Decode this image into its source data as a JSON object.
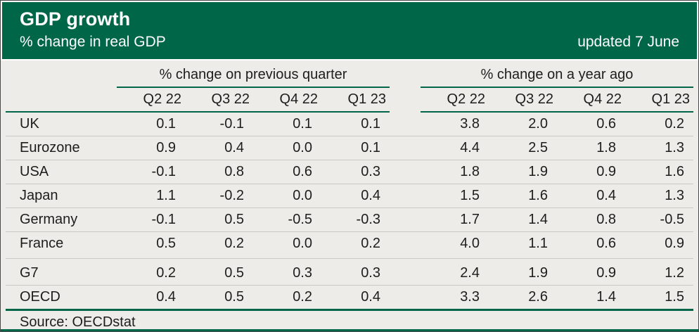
{
  "colors": {
    "brand_green": "#006648",
    "background": "#eeece9",
    "divider": "#c9c9c6",
    "text": "#1d1d1b",
    "header_text": "#ffffff"
  },
  "chart_data": {
    "type": "table",
    "title": "GDP growth",
    "subtitle": "% change in real GDP",
    "updated": "updated 7 June",
    "column_groups": [
      "% change on previous quarter",
      "% change on a year ago"
    ],
    "columns": [
      "Q2 22",
      "Q3 22",
      "Q4 22",
      "Q1 23"
    ],
    "rows": [
      {
        "name": "UK",
        "qoq": [
          "0.1",
          "-0.1",
          "0.1",
          "0.1"
        ],
        "yoy": [
          "3.8",
          "2.0",
          "0.6",
          "0.2"
        ]
      },
      {
        "name": "Eurozone",
        "qoq": [
          "0.9",
          "0.4",
          "0.0",
          "0.1"
        ],
        "yoy": [
          "4.4",
          "2.5",
          "1.8",
          "1.3"
        ]
      },
      {
        "name": "USA",
        "qoq": [
          "-0.1",
          "0.8",
          "0.6",
          "0.3"
        ],
        "yoy": [
          "1.8",
          "1.9",
          "0.9",
          "1.6"
        ]
      },
      {
        "name": "Japan",
        "qoq": [
          "1.1",
          "-0.2",
          "0.0",
          "0.4"
        ],
        "yoy": [
          "1.5",
          "1.6",
          "0.4",
          "1.3"
        ]
      },
      {
        "name": "Germany",
        "qoq": [
          "-0.1",
          "0.5",
          "-0.5",
          "-0.3"
        ],
        "yoy": [
          "1.7",
          "1.4",
          "0.8",
          "-0.5"
        ]
      },
      {
        "name": "France",
        "qoq": [
          "0.5",
          "0.2",
          "0.0",
          "0.2"
        ],
        "yoy": [
          "4.0",
          "1.1",
          "0.6",
          "0.9"
        ]
      },
      {
        "name": "G7",
        "qoq": [
          "0.2",
          "0.5",
          "0.3",
          "0.3"
        ],
        "yoy": [
          "2.4",
          "1.9",
          "0.9",
          "1.2"
        ]
      },
      {
        "name": "OECD",
        "qoq": [
          "0.4",
          "0.5",
          "0.2",
          "0.4"
        ],
        "yoy": [
          "3.3",
          "2.6",
          "1.4",
          "1.5"
        ]
      }
    ],
    "source": "Source: OECDstat"
  }
}
